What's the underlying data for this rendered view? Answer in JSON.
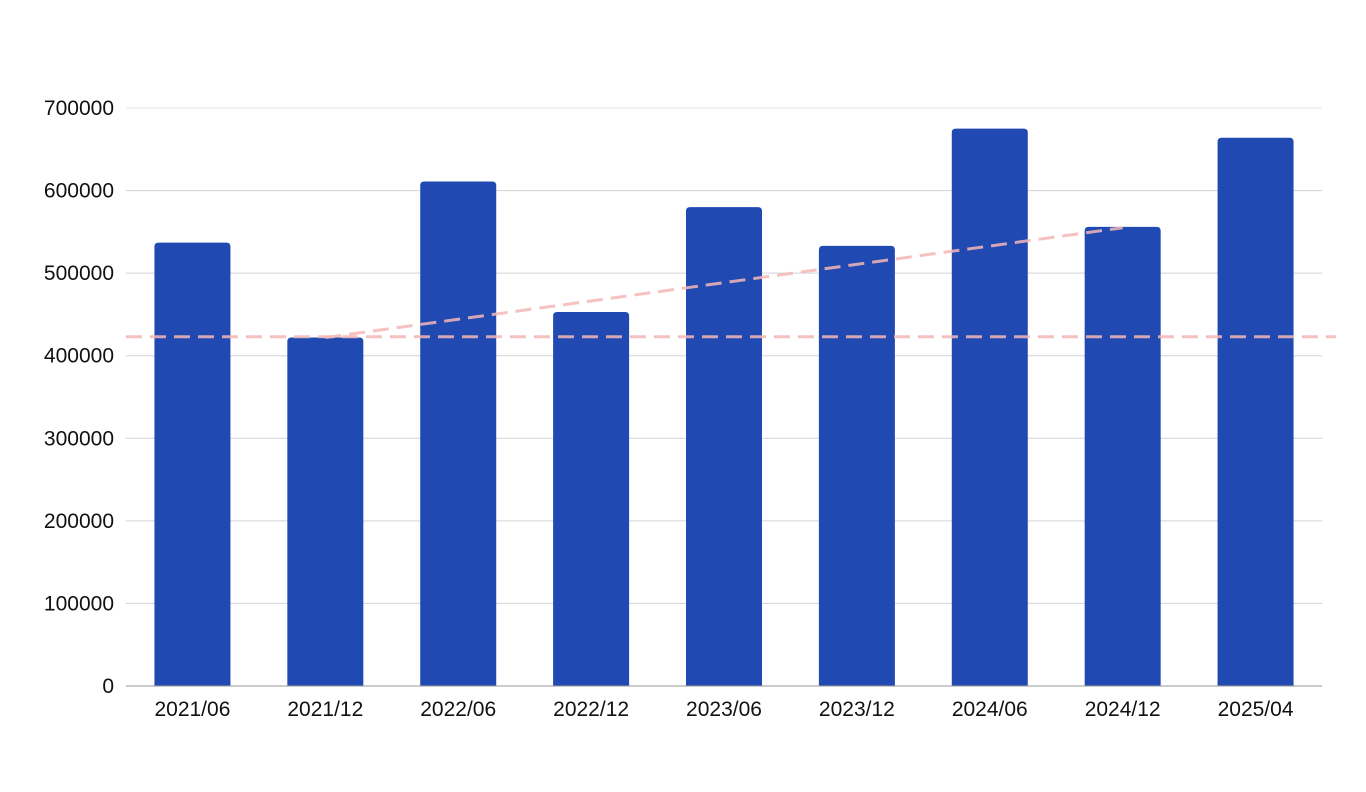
{
  "chart_data": {
    "type": "bar",
    "title": "",
    "xlabel": "",
    "ylabel": "",
    "categories": [
      "2021/06",
      "2021/12",
      "2022/06",
      "2022/12",
      "2023/06",
      "2023/12",
      "2024/06",
      "2024/12",
      "2025/04"
    ],
    "series": [
      {
        "values": [
          537000,
          422000,
          611000,
          453000,
          580000,
          533000,
          675000,
          556000,
          664000
        ],
        "color": "#2149b2"
      }
    ],
    "ylim": [
      0,
      700000
    ],
    "yticks": [
      0,
      100000,
      200000,
      300000,
      400000,
      500000,
      600000,
      700000
    ],
    "ytick_labels": [
      "0",
      "100000",
      "200000",
      "300000",
      "400000",
      "500000",
      "600000",
      "700000"
    ],
    "grid": true,
    "legend": "none",
    "reference_lines": [
      {
        "kind": "horizontal",
        "y": 423000,
        "style": "dashed",
        "color": "#f4b6b6"
      },
      {
        "kind": "trend",
        "from": {
          "x": "2021/12",
          "y": 422000
        },
        "to": {
          "x": "2024/12",
          "y": 555000
        },
        "style": "dashed",
        "color": "#f4b6b6"
      }
    ]
  }
}
